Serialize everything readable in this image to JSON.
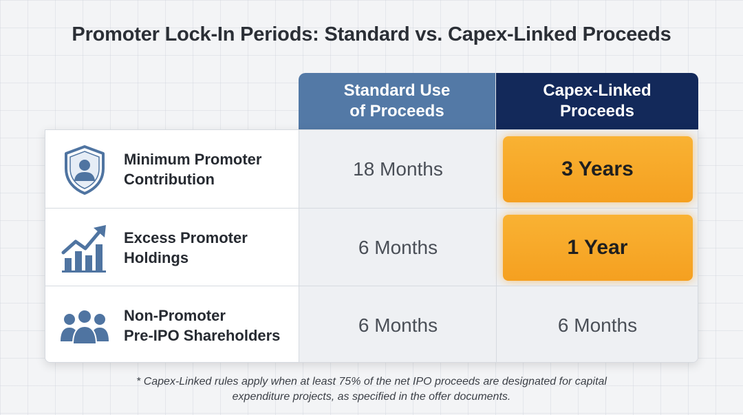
{
  "title": "Promoter Lock-In Periods: Standard vs. Capex-Linked Proceeds",
  "columns": {
    "standard": {
      "line1": "Standard Use",
      "line2": "of Proceeds",
      "color": "#5379a6"
    },
    "capex": {
      "line1": "Capex-Linked",
      "line2": "Proceeds",
      "color": "#13295a"
    }
  },
  "rows": [
    {
      "icon": "shield-user-icon",
      "label_line1": "Minimum Promoter",
      "label_line2": "Contribution",
      "standard": "18 Months",
      "capex": "3 Years",
      "capex_highlight": true
    },
    {
      "icon": "growth-chart-icon",
      "label_line1": "Excess Promoter",
      "label_line2": "Holdings",
      "standard": "6 Months",
      "capex": "1 Year",
      "capex_highlight": true
    },
    {
      "icon": "group-icon",
      "label_line1": "Non-Promoter",
      "label_line2": "Pre-IPO Shareholders",
      "standard": "6 Months",
      "capex": "6 Months",
      "capex_highlight": false
    }
  ],
  "footnote": {
    "line1": "* Capex-Linked rules apply when at least 75% of the net IPO proceeds are designated for capital",
    "line2": "expenditure projects, as specified in the offer documents."
  },
  "colors": {
    "highlight": "#f7a928",
    "icon": "#4f74a1"
  }
}
